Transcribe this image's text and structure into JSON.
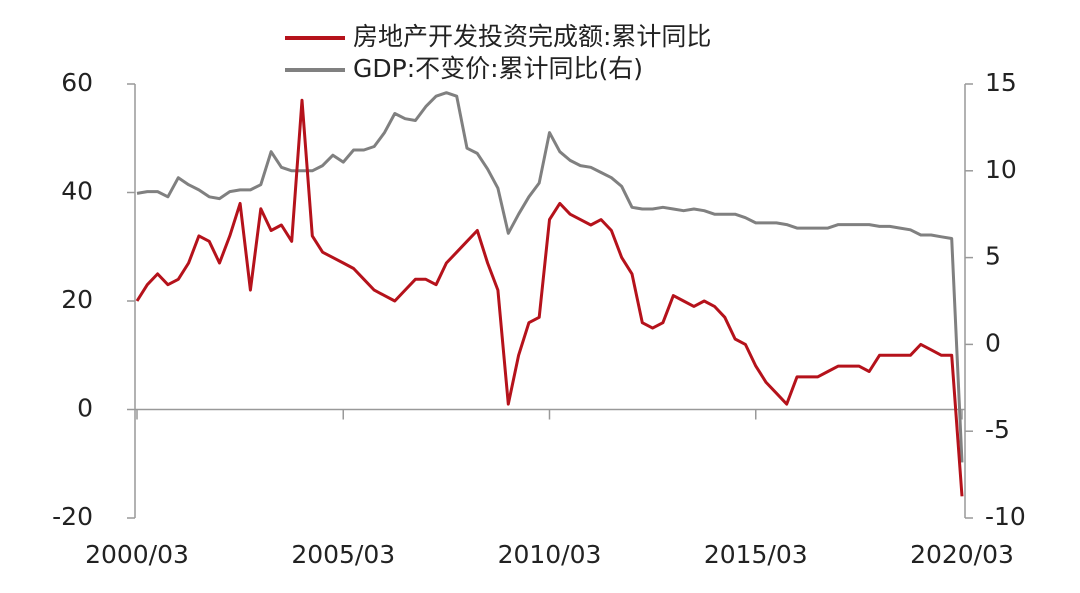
{
  "chart_data": {
    "type": "line",
    "x": [
      "2000/03",
      "2000/06",
      "2000/09",
      "2000/12",
      "2001/03",
      "2001/06",
      "2001/09",
      "2001/12",
      "2002/03",
      "2002/06",
      "2002/09",
      "2002/12",
      "2003/03",
      "2003/06",
      "2003/09",
      "2003/12",
      "2004/03",
      "2004/06",
      "2004/09",
      "2004/12",
      "2005/03",
      "2005/06",
      "2005/09",
      "2005/12",
      "2006/03",
      "2006/06",
      "2006/09",
      "2006/12",
      "2007/03",
      "2007/06",
      "2007/09",
      "2007/12",
      "2008/03",
      "2008/06",
      "2008/09",
      "2008/12",
      "2009/03",
      "2009/06",
      "2009/09",
      "2009/12",
      "2010/03",
      "2010/06",
      "2010/09",
      "2010/12",
      "2011/03",
      "2011/06",
      "2011/09",
      "2011/12",
      "2012/03",
      "2012/06",
      "2012/09",
      "2012/12",
      "2013/03",
      "2013/06",
      "2013/09",
      "2013/12",
      "2014/03",
      "2014/06",
      "2014/09",
      "2014/12",
      "2015/03",
      "2015/06",
      "2015/09",
      "2015/12",
      "2016/03",
      "2016/06",
      "2016/09",
      "2016/12",
      "2017/03",
      "2017/06",
      "2017/09",
      "2017/12",
      "2018/03",
      "2018/06",
      "2018/09",
      "2018/12",
      "2019/03",
      "2019/06",
      "2019/09",
      "2019/12",
      "2020/03"
    ],
    "series": [
      {
        "name": "房地产开发投资完成额:累计同比",
        "color": "#b5121b",
        "values": [
          20,
          23,
          25,
          23,
          24,
          27,
          32,
          31,
          27,
          32,
          38,
          22,
          37,
          33,
          34,
          31,
          57,
          32,
          29,
          28,
          27,
          26,
          24,
          22,
          21,
          20,
          22,
          24,
          24,
          23,
          27,
          29,
          31,
          33,
          27,
          22,
          1,
          10,
          16,
          17,
          35,
          38,
          36,
          35,
          34,
          35,
          33,
          28,
          25,
          16,
          15,
          16,
          21,
          20,
          19,
          20,
          19,
          17,
          13,
          12,
          8,
          5,
          3,
          1,
          6,
          6,
          6,
          7,
          8,
          8,
          8,
          7,
          10,
          10,
          10,
          10,
          12,
          11,
          10,
          10,
          -16
        ]
      },
      {
        "name": "GDP:不变价:累计同比(右)",
        "color": "#808080",
        "axis": "y2",
        "values": [
          8.7,
          8.8,
          8.8,
          8.5,
          9.6,
          9.2,
          8.9,
          8.5,
          8.4,
          8.8,
          8.9,
          8.9,
          9.2,
          11.1,
          10.2,
          10.0,
          10.0,
          10.0,
          10.3,
          10.9,
          10.5,
          11.2,
          11.2,
          11.4,
          12.2,
          13.3,
          13.0,
          12.9,
          13.7,
          14.3,
          14.5,
          14.3,
          11.3,
          11.0,
          10.1,
          9.0,
          6.4,
          7.5,
          8.5,
          9.3,
          12.2,
          11.1,
          10.6,
          10.3,
          10.2,
          9.9,
          9.6,
          9.1,
          7.9,
          7.8,
          7.8,
          7.9,
          7.8,
          7.7,
          7.8,
          7.7,
          7.5,
          7.5,
          7.5,
          7.3,
          7.0,
          7.0,
          7.0,
          6.9,
          6.7,
          6.7,
          6.7,
          6.7,
          6.9,
          6.9,
          6.9,
          6.9,
          6.8,
          6.8,
          6.7,
          6.6,
          6.3,
          6.3,
          6.2,
          6.1,
          -6.8
        ]
      }
    ],
    "xticks": [
      "2000/03",
      "2005/03",
      "2010/03",
      "2015/03",
      "2020/03"
    ],
    "ylim": [
      -20,
      60
    ],
    "yticks": [
      -20,
      0,
      20,
      40,
      60
    ],
    "y2lim": [
      -10,
      15
    ],
    "y2ticks": [
      -10,
      -5,
      0,
      5,
      10,
      15
    ],
    "legend": "top"
  }
}
